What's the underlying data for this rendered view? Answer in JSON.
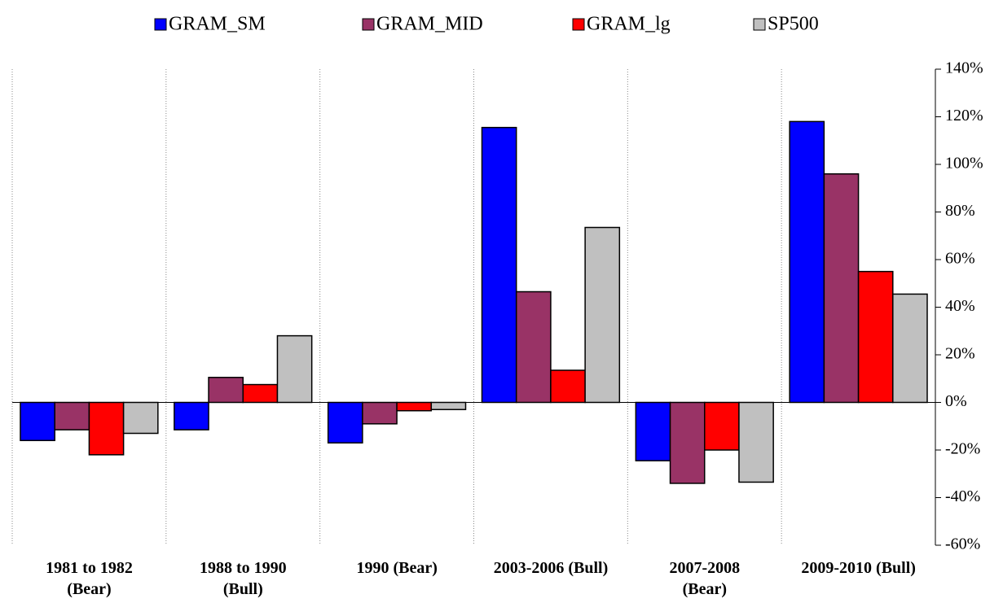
{
  "chart_data": {
    "type": "bar",
    "categories": [
      "1981 to 1982\n(Bear)",
      "1988 to 1990\n(Bull)",
      "1990 (Bear)",
      "2003-2006 (Bull)",
      "2007-2008\n(Bear)",
      "2009-2010 (Bull)"
    ],
    "series": [
      {
        "name": "GRAM_SM",
        "color": "#0000ff",
        "values": [
          -16,
          -11.5,
          -17,
          115.5,
          -24.5,
          118
        ]
      },
      {
        "name": "GRAM_MID",
        "color": "#993366",
        "values": [
          -11.5,
          10.5,
          -9,
          46.5,
          -34,
          96
        ]
      },
      {
        "name": "GRAM_lg",
        "color": "#ff0000",
        "values": [
          -22,
          7.5,
          -3.5,
          13.5,
          -20,
          55
        ]
      },
      {
        "name": "SP500",
        "color": "#c0c0c0",
        "values": [
          -13,
          28,
          -3,
          73.5,
          -33.5,
          45.5
        ]
      }
    ],
    "ylim": [
      -60,
      140
    ],
    "yticks": [
      {
        "value": -60,
        "label": "-60%"
      },
      {
        "value": -40,
        "label": "-40%"
      },
      {
        "value": -20,
        "label": "-20%"
      },
      {
        "value": 0,
        "label": "0%"
      },
      {
        "value": 20,
        "label": "20%"
      },
      {
        "value": 40,
        "label": "40%"
      },
      {
        "value": 60,
        "label": "60%"
      },
      {
        "value": 80,
        "label": "80%"
      },
      {
        "value": 100,
        "label": "100%"
      },
      {
        "value": 120,
        "label": "120%"
      },
      {
        "value": 140,
        "label": "140%"
      }
    ],
    "legend": "top"
  }
}
